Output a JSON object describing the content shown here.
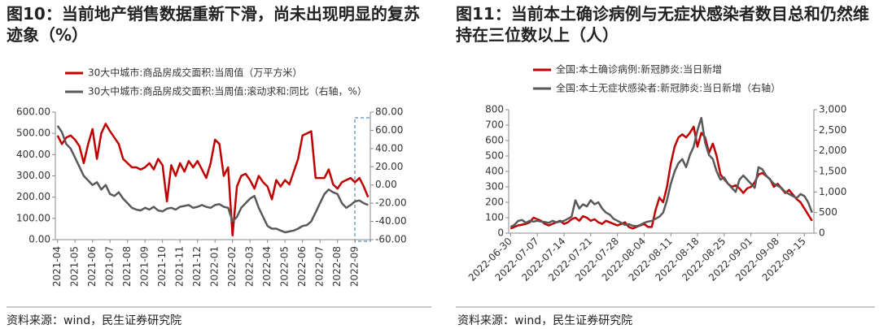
{
  "chart_data": [
    {
      "type": "line",
      "title": "图10：当前地产销售数据重新下滑，尚未出现明显的复苏迹象（%）",
      "source": "资料来源：wind，民生证券研究院",
      "categories": [
        "2021-04",
        null,
        null,
        null,
        "2021-05",
        null,
        null,
        null,
        "2021-06",
        null,
        null,
        null,
        "2021-07",
        null,
        null,
        null,
        "2021-08",
        null,
        null,
        null,
        "2021-09",
        null,
        null,
        null,
        "2021-10",
        null,
        null,
        null,
        "2021-11",
        null,
        null,
        null,
        "2021-12",
        null,
        null,
        null,
        "2022-01",
        null,
        null,
        null,
        "2022-02",
        null,
        null,
        null,
        "2022-03",
        null,
        null,
        null,
        "2022-04",
        null,
        null,
        null,
        "2022-05",
        null,
        null,
        null,
        "2022-06",
        null,
        null,
        null,
        "2022-07",
        null,
        null,
        null,
        "2022-08",
        null,
        null,
        null,
        "2022-09",
        null,
        null,
        null
      ],
      "series": [
        {
          "name": "30大中城市:商品房成交面积:当周值（万平方米）",
          "color": "#c00000",
          "values": [
            490,
            450,
            480,
            490,
            470,
            440,
            360,
            450,
            520,
            380,
            500,
            545,
            510,
            480,
            450,
            380,
            360,
            340,
            340,
            330,
            340,
            360,
            330,
            380,
            350,
            180,
            350,
            300,
            360,
            320,
            370,
            340,
            370,
            330,
            290,
            360,
            470,
            450,
            300,
            340,
            20,
            250,
            300,
            310,
            280,
            240,
            300,
            270,
            250,
            190,
            280,
            250,
            280,
            260,
            320,
            380,
            490,
            500,
            510,
            290,
            290,
            290,
            330,
            260,
            240,
            270,
            280,
            290,
            270,
            290,
            250,
            200
          ]
        },
        {
          "name": "30大中城市:商品房成交面积:当周值:滚动求和:同比（右轴，%）",
          "color": "#595959",
          "axis": "y2",
          "values": [
            65,
            58,
            45,
            40,
            30,
            20,
            10,
            5,
            0,
            3,
            -5,
            0,
            -10,
            -12,
            -8,
            -15,
            -20,
            -25,
            -27,
            -28,
            -25,
            -27,
            -24,
            -28,
            -29,
            -26,
            -25,
            -27,
            -24,
            -23,
            -22,
            -25,
            -24,
            -22,
            -24,
            -25,
            -22,
            -21,
            -24,
            -25,
            -40,
            -35,
            -25,
            -20,
            -15,
            -12,
            -25,
            -35,
            -45,
            -48,
            -48,
            -50,
            -52,
            -51,
            -50,
            -48,
            -45,
            -44,
            -40,
            -30,
            -20,
            -10,
            -5,
            -8,
            -10,
            -20,
            -25,
            -22,
            -18,
            -17,
            -20,
            -22
          ]
        }
      ],
      "ylim": [
        0,
        600
      ],
      "yticks": [
        {
          "value": 0,
          "label": "0.00"
        },
        {
          "value": 100,
          "label": "100.00"
        },
        {
          "value": 200,
          "label": "200.00"
        },
        {
          "value": 300,
          "label": "300.00"
        },
        {
          "value": 400,
          "label": "400.00"
        },
        {
          "value": 500,
          "label": "500.00"
        },
        {
          "value": 600,
          "label": "600.00"
        }
      ],
      "y2lim": [
        -60,
        80
      ],
      "y2ticks": [
        {
          "value": -60,
          "label": "-60.00"
        },
        {
          "value": -40,
          "label": "-40.00"
        },
        {
          "value": -20,
          "label": "-20.00"
        },
        {
          "value": 0,
          "label": "0.00"
        },
        {
          "value": 20,
          "label": "20.00"
        },
        {
          "value": 40,
          "label": "40.00"
        },
        {
          "value": 60,
          "label": "60.00"
        },
        {
          "value": 80,
          "label": "80.00"
        }
      ],
      "grid": false
    },
    {
      "type": "line",
      "title": "图11：当前本土确诊病例与无症状感染者数目总和仍然维持在三位数以上（人）",
      "source": "资料来源：wind，民生证券研究院",
      "categories": [
        "2022-06-30",
        null,
        null,
        null,
        null,
        null,
        null,
        "2022-07-07",
        null,
        null,
        null,
        null,
        null,
        null,
        "2022-07-14",
        null,
        null,
        null,
        null,
        null,
        null,
        "2022-07-21",
        null,
        null,
        null,
        null,
        null,
        null,
        "2022-07-28",
        null,
        null,
        null,
        null,
        null,
        null,
        "2022-08-04",
        null,
        null,
        null,
        null,
        null,
        null,
        "2022-08-11",
        null,
        null,
        null,
        null,
        null,
        null,
        "2022-08-18",
        null,
        null,
        null,
        null,
        null,
        null,
        "2022-08-25",
        null,
        null,
        null,
        null,
        null,
        null,
        "2022-09-01",
        null,
        null,
        null,
        null,
        null,
        null,
        "2022-09-08",
        null,
        null,
        null,
        null,
        null,
        null,
        "2022-09-15",
        null,
        null
      ],
      "series": [
        {
          "name": "全国:本土确诊病例:新冠肺炎:当日新增",
          "color": "#c00000",
          "values": [
            30,
            40,
            50,
            55,
            60,
            70,
            100,
            90,
            80,
            60,
            50,
            60,
            70,
            80,
            60,
            70,
            90,
            100,
            80,
            110,
            100,
            80,
            90,
            70,
            60,
            80,
            70,
            60,
            50,
            60,
            70,
            40,
            30,
            40,
            50,
            60,
            40,
            40,
            150,
            230,
            200,
            300,
            450,
            560,
            620,
            640,
            620,
            650,
            690,
            560,
            650,
            620,
            520,
            580,
            500,
            380,
            350,
            320,
            300,
            310,
            290,
            260,
            290,
            300,
            330,
            380,
            390,
            370,
            350,
            300,
            320,
            290,
            260,
            280,
            250,
            220,
            200,
            160,
            120,
            80
          ]
        },
        {
          "name": "全国:本土无症状感染者:新冠肺炎:当日新增（右轴）",
          "color": "#595959",
          "axis": "y2",
          "values": [
            150,
            200,
            300,
            320,
            250,
            300,
            280,
            300,
            280,
            270,
            250,
            300,
            260,
            280,
            300,
            350,
            400,
            800,
            600,
            700,
            650,
            800,
            700,
            750,
            600,
            500,
            450,
            350,
            300,
            250,
            200,
            220,
            180,
            170,
            200,
            250,
            280,
            300,
            350,
            400,
            500,
            800,
            1200,
            1500,
            1700,
            1800,
            1600,
            1900,
            2100,
            2500,
            2800,
            2200,
            1900,
            1800,
            1500,
            1300,
            1350,
            1200,
            1100,
            1000,
            1300,
            1400,
            1300,
            1200,
            1100,
            1600,
            1550,
            1400,
            1300,
            1200,
            1150,
            1100,
            1000,
            950,
            900,
            850,
            950,
            900,
            750,
            500
          ]
        }
      ],
      "ylim": [
        0,
        800
      ],
      "yticks": [
        0,
        100,
        200,
        300,
        400,
        500,
        600,
        700,
        800
      ],
      "y2lim": [
        0,
        3000
      ],
      "y2ticks": [
        0,
        500,
        {
          "value": 1000,
          "label": "1,000"
        },
        {
          "value": 1500,
          "label": "1,500"
        },
        {
          "value": 2000,
          "label": "2,000"
        },
        {
          "value": 2500,
          "label": "2,500"
        },
        {
          "value": 3000,
          "label": "3,000"
        }
      ],
      "grid": false
    }
  ]
}
